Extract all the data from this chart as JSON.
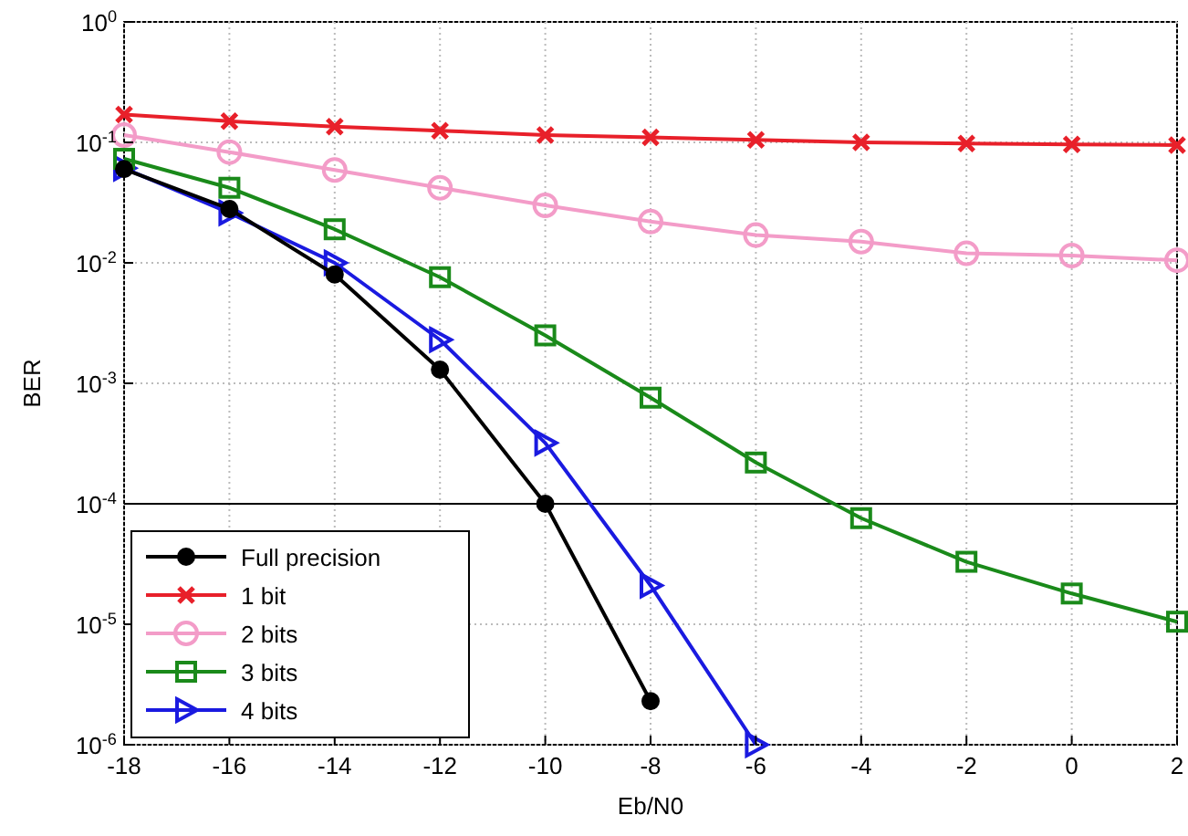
{
  "chart_data": {
    "type": "line",
    "xlabel": "Eb/N0",
    "ylabel": "BER",
    "log": "y",
    "grid": true,
    "legend": "bottom left",
    "line_style": "solid",
    "x": [
      -18,
      -16,
      -14,
      -12,
      -10,
      -8,
      -6,
      -4,
      -2,
      0,
      2
    ],
    "xlim": [
      -18,
      2
    ],
    "xticks": [
      -18,
      -16,
      -14,
      -12,
      -10,
      -8,
      -6,
      -4,
      -2,
      0,
      2
    ],
    "ylim": [
      1e-06,
      1
    ],
    "yticks": [
      {
        "value": 1,
        "label": "10$^{0}$"
      },
      {
        "value": 0.1,
        "label": "10$^{-1}$"
      },
      {
        "value": 0.01,
        "label": "10$^{-2}$"
      },
      {
        "value": 0.001,
        "label": "10$^{-3}$"
      },
      {
        "value": 0.0001,
        "label": "10$^{-4}$"
      },
      {
        "value": 1e-05,
        "label": "10$^{-5}$"
      },
      {
        "value": 1e-06,
        "label": "10$^{-6}$"
      }
    ],
    "ref_lines": [
      {
        "axis": "y",
        "value": 0.0001,
        "label": null,
        "color": "#000000"
      }
    ],
    "series": [
      {
        "name": "Full precision",
        "color": "#000000",
        "marker": "circle",
        "values": [
          0.06,
          0.028,
          0.008,
          0.0013,
          0.0001,
          2.3e-06,
          null,
          null,
          null,
          null,
          null
        ]
      },
      {
        "name": "1 bit",
        "color": "#e8202a",
        "marker": "cross",
        "values": [
          0.17,
          0.15,
          0.135,
          0.125,
          0.115,
          0.11,
          0.105,
          0.1,
          0.098,
          0.096,
          0.095
        ]
      },
      {
        "name": "2 bits",
        "color": "#f39cc8",
        "marker": "circle",
        "values": [
          0.115,
          0.083,
          0.059,
          0.042,
          0.03,
          0.022,
          0.017,
          0.015,
          0.012,
          0.0115,
          0.0105
        ]
      },
      {
        "name": "3 bits",
        "color": "#1a8a1a",
        "marker": "square",
        "values": [
          0.073,
          0.042,
          0.019,
          0.0076,
          0.0025,
          0.00076,
          0.00022,
          7.6e-05,
          3.3e-05,
          1.8e-05,
          1.05e-05
        ]
      },
      {
        "name": "4 bits",
        "color": "#1a1ae0",
        "marker": "triangle",
        "values": [
          0.061,
          0.026,
          0.01,
          0.0023,
          0.00032,
          2.1e-05,
          1e-06,
          null,
          null,
          null,
          null
        ]
      }
    ]
  }
}
